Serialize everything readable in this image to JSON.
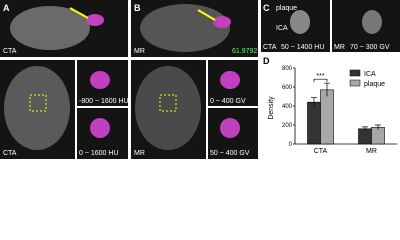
{
  "panels": {
    "A": {
      "label": "A",
      "top_modality": "CTA",
      "bottom_modality": "CTA",
      "inset_top": "-800 ~ 1600 HU",
      "inset_bottom": "0 ~ 1600 HU"
    },
    "B": {
      "label": "B",
      "top_modality": "MR",
      "number": "61.9792",
      "bottom_modality": "MR",
      "inset_top": "0 ~ 400 GV",
      "inset_bottom": "50 ~ 400 GV"
    },
    "C": {
      "label": "C",
      "plaque": "plaque",
      "ica": "ICA",
      "left_modality": "CTA",
      "left_window": "50 ~ 1400 HU",
      "right_modality": "MR",
      "right_window": "70 ~ 300 GV"
    }
  },
  "chart_data": {
    "type": "bar",
    "label": "D",
    "ylabel": "Density",
    "categories": [
      "CTA",
      "MR"
    ],
    "series": [
      {
        "name": "ICA",
        "color": "#333333",
        "values": [
          440,
          160
        ],
        "errors": [
          50,
          20
        ]
      },
      {
        "name": "plaque",
        "color": "#a8a8a8",
        "values": [
          570,
          175
        ],
        "errors": [
          70,
          25
        ]
      }
    ],
    "ylim": [
      0,
      800
    ],
    "yticks": [
      0,
      200,
      400,
      600,
      800
    ],
    "annotation": "***"
  }
}
